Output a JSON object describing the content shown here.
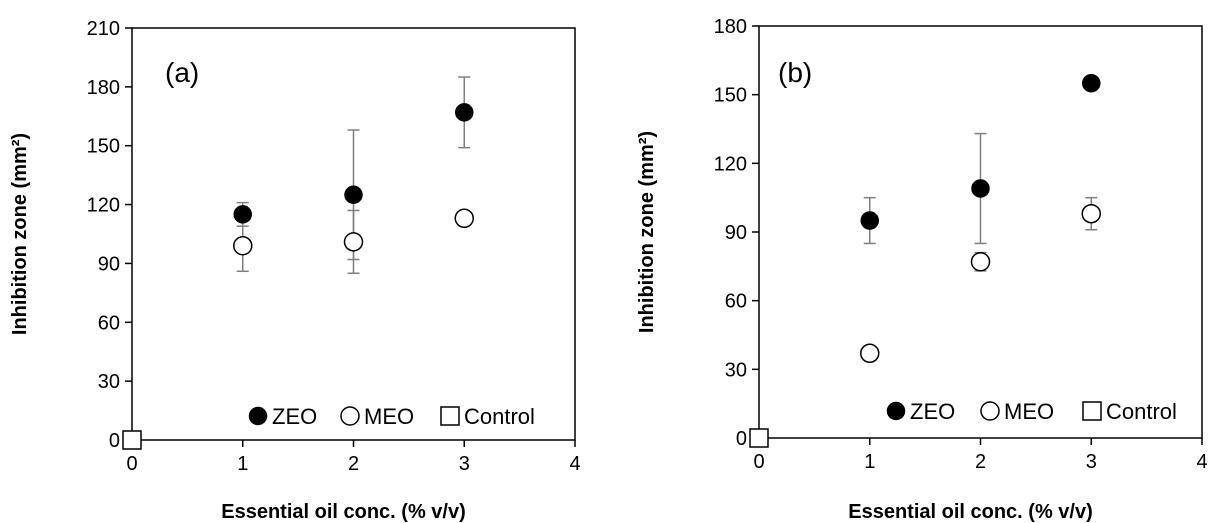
{
  "chart_data": [
    {
      "type": "scatter",
      "panel_label": "(a)",
      "xlabel": "Essential oil conc. (% v/v)",
      "ylabel": "Inhibition zone (mm²)",
      "xlim": [
        0,
        4
      ],
      "ylim": [
        0,
        210
      ],
      "xticks": [
        "0",
        "1",
        "2",
        "3",
        "4"
      ],
      "yticks": [
        "0",
        "30",
        "60",
        "90",
        "120",
        "150",
        "180",
        "210"
      ],
      "legend_position": "bottom-right",
      "series": [
        {
          "name": "ZEO",
          "marker": "filled-circle",
          "x": [
            1,
            2,
            3
          ],
          "y": [
            115,
            125,
            167
          ],
          "err": [
            6,
            33,
            18
          ]
        },
        {
          "name": "MEO",
          "marker": "open-circle",
          "x": [
            1,
            2,
            3
          ],
          "y": [
            99,
            101,
            113
          ],
          "err": [
            13,
            16,
            0
          ]
        },
        {
          "name": "Control",
          "marker": "open-square",
          "x": [
            0
          ],
          "y": [
            0
          ],
          "err": [
            0
          ]
        }
      ]
    },
    {
      "type": "scatter",
      "panel_label": "(b)",
      "xlabel": "Essential oil conc. (% v/v)",
      "ylabel": "Inhibition zone (mm²)",
      "xlim": [
        0,
        4
      ],
      "ylim": [
        0,
        180
      ],
      "xticks": [
        "0",
        "1",
        "2",
        "3",
        "4"
      ],
      "yticks": [
        "0",
        "30",
        "60",
        "90",
        "120",
        "150",
        "180"
      ],
      "legend_position": "bottom-right",
      "series": [
        {
          "name": "ZEO",
          "marker": "filled-circle",
          "x": [
            1,
            2,
            3
          ],
          "y": [
            95,
            109,
            155
          ],
          "err": [
            10,
            24,
            0
          ]
        },
        {
          "name": "MEO",
          "marker": "open-circle",
          "x": [
            1,
            2,
            3
          ],
          "y": [
            37,
            77,
            98
          ],
          "err": [
            0,
            4,
            7
          ]
        },
        {
          "name": "Control",
          "marker": "open-square",
          "x": [
            0
          ],
          "y": [
            0
          ],
          "err": [
            0
          ]
        }
      ]
    }
  ]
}
